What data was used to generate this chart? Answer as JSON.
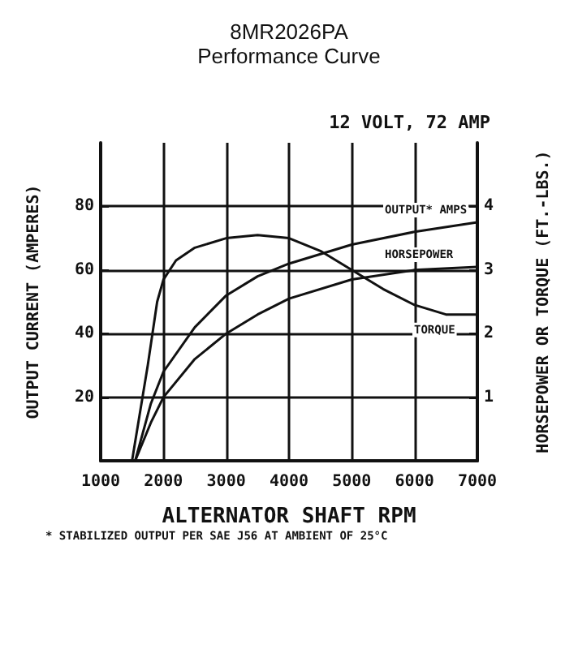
{
  "chart_data": {
    "type": "line",
    "title": "8MR2026PA",
    "subtitle": "Performance Curve",
    "xlabel": "ALTERNATOR SHAFT RPM",
    "ylabel": "OUTPUT CURRENT (AMPERES)",
    "y2label": "HORSEPOWER OR TORQUE (FT.-LBS.)",
    "annotations": [
      "12 VOLT, 72 AMP",
      "* STABILIZED OUTPUT PER SAE J56 AT AMBIENT OF 25°C"
    ],
    "xlim": [
      1000,
      7000
    ],
    "xticks": [
      1000,
      2000,
      3000,
      4000,
      5000,
      6000,
      7000
    ],
    "ylim": [
      0,
      100
    ],
    "yticks": [
      20,
      40,
      60,
      80
    ],
    "y2lim": [
      0,
      5
    ],
    "y2ticks": [
      1,
      2,
      3,
      4
    ],
    "grid": true,
    "legend": false,
    "marker": "none",
    "line_style": "solid",
    "series": [
      {
        "name": "OUTPUT* AMPS",
        "color": "#111111",
        "x": [
          1550,
          1800,
          2000,
          2500,
          3000,
          3500,
          4000,
          5000,
          6000,
          7000
        ],
        "values": [
          0,
          18,
          28,
          42,
          52,
          58,
          62,
          68,
          72,
          75
        ]
      },
      {
        "name": "HORSEPOWER",
        "color": "#111111",
        "axis": "y2",
        "x": [
          1550,
          1800,
          2000,
          2500,
          3000,
          3500,
          4000,
          5000,
          6000,
          7000
        ],
        "values": [
          0,
          0.6,
          1,
          1.6,
          2,
          2.3,
          2.55,
          2.85,
          3,
          3.05
        ]
      },
      {
        "name": "TORQUE",
        "color": "#111111",
        "axis": "y2",
        "x": [
          1500,
          1750,
          1900,
          2000,
          2200,
          2500,
          3000,
          3500,
          4000,
          4500,
          5000,
          5500,
          6000,
          6500,
          7000
        ],
        "values": [
          0,
          1.5,
          2.5,
          2.85,
          3.15,
          3.35,
          3.5,
          3.55,
          3.5,
          3.3,
          3,
          2.7,
          2.45,
          2.3,
          2.3
        ]
      }
    ]
  }
}
